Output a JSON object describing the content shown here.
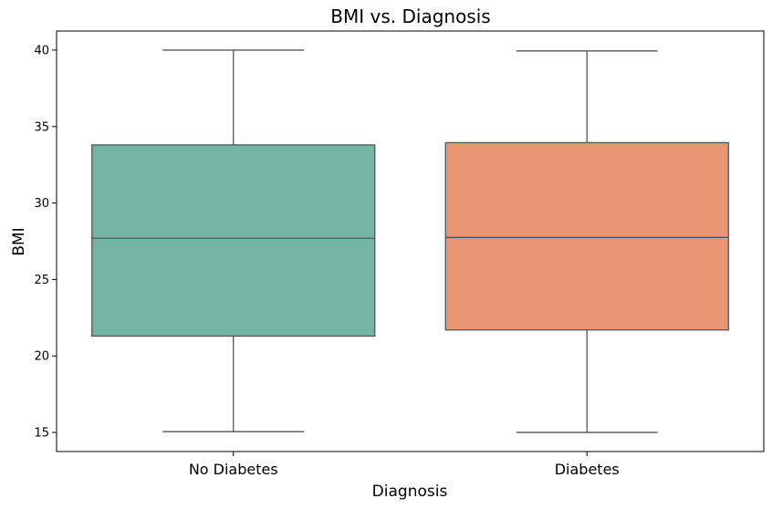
{
  "chart_data": {
    "type": "box",
    "title": "BMI vs. Diagnosis",
    "xlabel": "Diagnosis",
    "ylabel": "BMI",
    "ylim": [
      13.75,
      41.25
    ],
    "yticks": [
      15,
      20,
      25,
      30,
      35,
      40
    ],
    "grid": false,
    "legend": "none",
    "categories": [
      "No Diabetes",
      "Diabetes"
    ],
    "boxes": [
      {
        "category": "No Diabetes",
        "min": 15.05,
        "q1": 21.3,
        "median": 27.7,
        "q3": 33.8,
        "max": 40.0,
        "color": "#72b6a1"
      },
      {
        "category": "Diabetes",
        "min": 15.0,
        "q1": 21.7,
        "median": 27.75,
        "q3": 33.95,
        "max": 39.95,
        "color": "#e99675"
      }
    ],
    "line_color": "#555555"
  }
}
